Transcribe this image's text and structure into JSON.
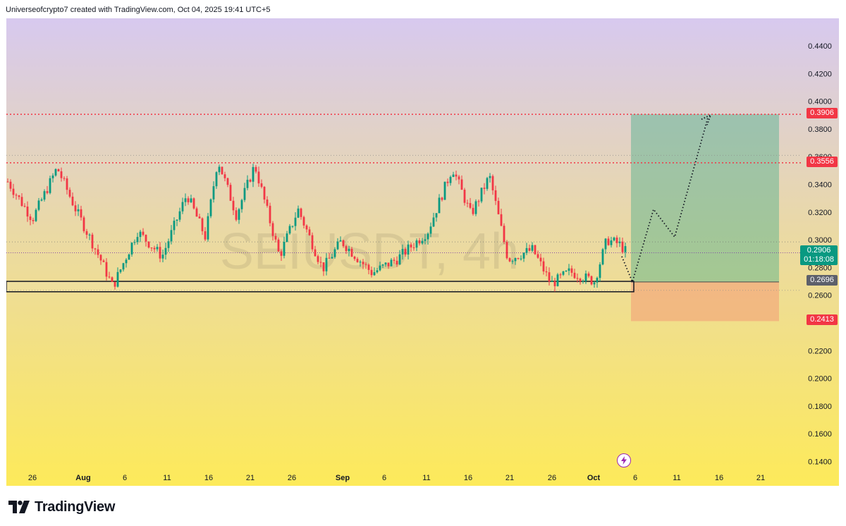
{
  "header": {
    "text": "Universeofcrypto7 created with TradingView.com, Oct 04, 2025 19:41 UTC+5"
  },
  "footer": {
    "brand": "TradingView",
    "logo_icon": "tradingview-logo-icon"
  },
  "colors": {
    "gradient_top": "#d7c9ef",
    "gradient_mid": "#ead9a6",
    "gradient_bottom": "#fdea5a",
    "candle_up": "#089981",
    "candle_down": "#f23645",
    "resistance_line": "#f23645",
    "target_zone": "rgba(76,175,140,0.45)",
    "stop_zone": "rgba(244,160,120,0.60)"
  },
  "chart_data": {
    "type": "candlestick",
    "symbol_watermark": "SEIUSDT, 4h",
    "y_axis": {
      "ticks": [
        "0.4400",
        "0.4200",
        "0.4000",
        "0.3800",
        "0.3600",
        "0.3400",
        "0.3200",
        "0.3000",
        "0.2800",
        "0.2600",
        "0.2200",
        "0.2000",
        "0.1800",
        "0.1600",
        "0.1400"
      ],
      "range": [
        0.13,
        0.459
      ]
    },
    "x_axis": {
      "ticks": [
        "26",
        "Aug",
        "6",
        "11",
        "16",
        "21",
        "26",
        "Sep",
        "6",
        "11",
        "16",
        "21",
        "26",
        "Oct",
        "6",
        "11",
        "16",
        "21"
      ],
      "bold_ticks": [
        "Aug",
        "Sep",
        "Oct"
      ]
    },
    "levels": [
      {
        "value": 0.3906,
        "label": "0.3906",
        "style": "red-dotted"
      },
      {
        "value": 0.3556,
        "label": "0.3556",
        "style": "red-dotted"
      }
    ],
    "current_price": {
      "value": 0.2906,
      "label": "0.2906",
      "countdown": "01:18:08"
    },
    "position": {
      "entry": 0.2696,
      "entry_label": "0.2696",
      "target": 0.3906,
      "stop": 0.2413,
      "stop_label": "0.2413"
    },
    "support_zone": {
      "low": 0.2625,
      "high": 0.27
    },
    "anchor_points": [
      [
        0,
        0.342
      ],
      [
        8,
        0.315
      ],
      [
        16,
        0.352
      ],
      [
        22,
        0.322
      ],
      [
        30,
        0.286
      ],
      [
        34,
        0.266
      ],
      [
        42,
        0.306
      ],
      [
        50,
        0.288
      ],
      [
        58,
        0.333
      ],
      [
        64,
        0.302
      ],
      [
        68,
        0.358
      ],
      [
        74,
        0.318
      ],
      [
        80,
        0.354
      ],
      [
        88,
        0.288
      ],
      [
        94,
        0.322
      ],
      [
        102,
        0.279
      ],
      [
        108,
        0.299
      ],
      [
        118,
        0.276
      ],
      [
        126,
        0.286
      ],
      [
        136,
        0.306
      ],
      [
        144,
        0.352
      ],
      [
        150,
        0.318
      ],
      [
        156,
        0.346
      ],
      [
        162,
        0.286
      ],
      [
        170,
        0.293
      ],
      [
        176,
        0.268
      ],
      [
        182,
        0.277
      ],
      [
        190,
        0.27
      ],
      [
        194,
        0.3
      ],
      [
        198,
        0.297
      ],
      [
        200,
        0.292
      ]
    ],
    "projection_path": [
      [
        0.2696
      ],
      [
        0.322
      ],
      [
        0.302
      ],
      [
        0.388
      ]
    ]
  },
  "icons": {
    "flash_icon": "lightning-icon"
  }
}
